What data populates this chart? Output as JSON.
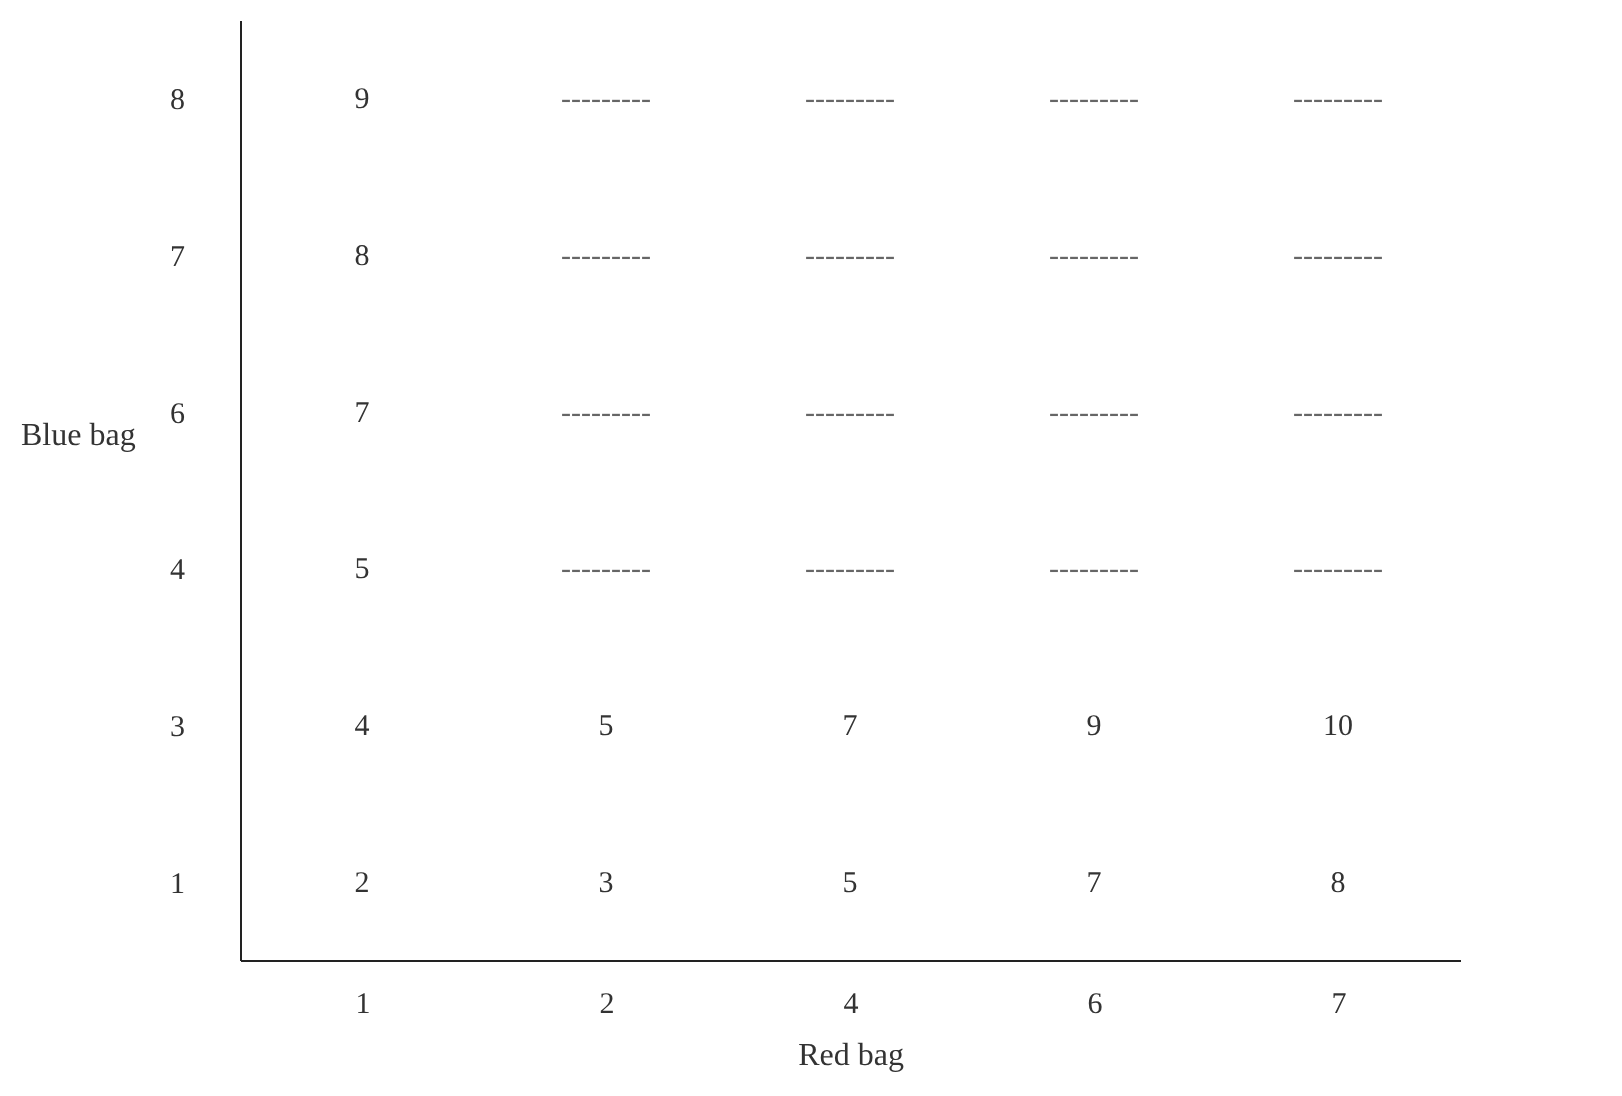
{
  "chart_data": {
    "type": "heatmap",
    "xlabel": "Red bag",
    "ylabel": "Blue bag",
    "categories": [
      "1",
      "2",
      "4",
      "6",
      "7"
    ],
    "y_categories": [
      "8",
      "7",
      "6",
      "4",
      "3",
      "1"
    ],
    "cells": [
      [
        9,
        null,
        null,
        null,
        null
      ],
      [
        8,
        null,
        null,
        null,
        null
      ],
      [
        7,
        null,
        null,
        null,
        null
      ],
      [
        5,
        null,
        null,
        null,
        null
      ],
      [
        4,
        5,
        7,
        9,
        10
      ],
      [
        2,
        3,
        5,
        7,
        8
      ]
    ],
    "cell_labels": [
      [
        "9",
        "---------",
        "---------",
        "---------",
        "---------"
      ],
      [
        "8",
        "---------",
        "---------",
        "---------",
        "---------"
      ],
      [
        "7",
        "---------",
        "---------",
        "---------",
        "---------"
      ],
      [
        "5",
        "---------",
        "---------",
        "---------",
        "---------"
      ],
      [
        "4",
        "5",
        "7",
        "9",
        "10"
      ],
      [
        "2",
        "3",
        "5",
        "7",
        "8"
      ]
    ]
  }
}
